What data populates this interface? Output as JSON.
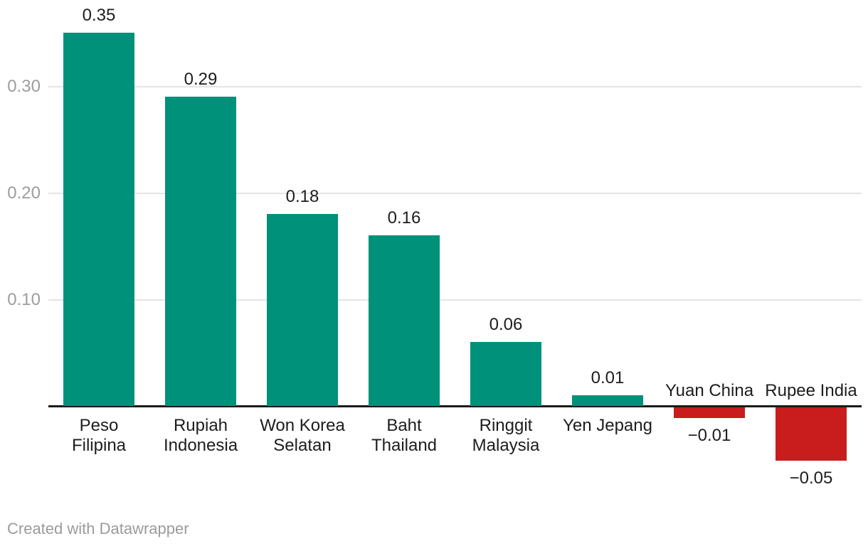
{
  "chart_data": {
    "type": "bar",
    "categories": [
      "Peso Filipina",
      "Rupiah Indonesia",
      "Won Korea Selatan",
      "Baht Thailand",
      "Ringgit Malaysia",
      "Yen Jepang",
      "Yuan China",
      "Rupee India"
    ],
    "category_label_lines": [
      [
        "Peso",
        "Filipina"
      ],
      [
        "Rupiah",
        "Indonesia"
      ],
      [
        "Won Korea",
        "Selatan"
      ],
      [
        "Baht",
        "Thailand"
      ],
      [
        "Ringgit",
        "Malaysia"
      ],
      [
        "Yen Jepang"
      ],
      [
        "Yuan China"
      ],
      [
        "Rupee India"
      ]
    ],
    "values": [
      0.35,
      0.29,
      0.18,
      0.16,
      0.06,
      0.01,
      -0.01,
      -0.05
    ],
    "value_labels": [
      "0.35",
      "0.29",
      "0.18",
      "0.16",
      "0.06",
      "0.01",
      "−0.01",
      "−0.05"
    ],
    "y_ticks": [
      {
        "value": 0.1,
        "label": "0.10"
      },
      {
        "value": 0.2,
        "label": "0.20"
      },
      {
        "value": 0.3,
        "label": "0.30"
      }
    ],
    "ylim": [
      -0.05,
      0.35
    ],
    "grid": true,
    "legend": false,
    "colors": {
      "positive_bar": "#00917a",
      "negative_bar": "#c81d1c",
      "gridline": "#e4e4e4",
      "axis_line": "#1a1a1a",
      "tick_label": "#9d9d9d",
      "value_label": "#1d1d1d",
      "category_label": "#1d1d1d"
    }
  },
  "footer": {
    "attribution": "Created with Datawrapper",
    "color": "#9b9b9b"
  }
}
